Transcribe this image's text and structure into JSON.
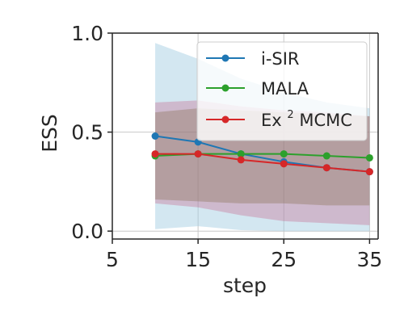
{
  "chart_data": {
    "type": "line",
    "title": "",
    "xlabel": "step",
    "ylabel": "ESS",
    "xlim": [
      5,
      36
    ],
    "ylim": [
      -0.04,
      1.0
    ],
    "xticks": [
      5,
      15,
      25,
      35
    ],
    "xtick_labels": [
      "5",
      "15",
      "25",
      "35"
    ],
    "yticks": [
      0.0,
      0.5,
      1.0
    ],
    "ytick_labels": [
      "0.0",
      "0.5",
      "1.0"
    ],
    "grid": true,
    "legend_position": "top-right",
    "x": [
      10,
      15,
      20,
      25,
      30,
      35
    ],
    "series": [
      {
        "name": "i-SIR",
        "legend_base": "i-SIR",
        "legend_sup": "",
        "legend_tail": "",
        "color": "#1f77b4",
        "values": [
          0.48,
          0.45,
          0.39,
          0.35,
          0.32,
          0.3
        ],
        "band_upper": [
          0.95,
          0.87,
          0.77,
          0.7,
          0.65,
          0.62
        ],
        "band_lower": [
          0.01,
          0.025,
          0.005,
          0.0,
          0.0,
          0.0
        ]
      },
      {
        "name": "MALA",
        "legend_base": "MALA",
        "legend_sup": "",
        "legend_tail": "",
        "color": "#2ca02c",
        "values": [
          0.38,
          0.39,
          0.39,
          0.39,
          0.38,
          0.37
        ],
        "band_upper": [
          0.6,
          0.62,
          0.61,
          0.6,
          0.59,
          0.58
        ],
        "band_lower": [
          0.16,
          0.15,
          0.14,
          0.14,
          0.13,
          0.13
        ]
      },
      {
        "name": "Ex2MCMC",
        "legend_base": "Ex",
        "legend_sup": "2",
        "legend_tail": "MCMC",
        "color": "#d62728",
        "values": [
          0.39,
          0.39,
          0.36,
          0.34,
          0.32,
          0.3
        ],
        "band_upper": [
          0.65,
          0.66,
          0.63,
          0.61,
          0.6,
          0.58
        ],
        "band_lower": [
          0.14,
          0.12,
          0.08,
          0.05,
          0.04,
          0.03
        ]
      }
    ],
    "colors": {
      "band_blue": "#9ecae1",
      "band_red": "#c44e7a",
      "band_green": "#6b7a3a",
      "axis": "#262626",
      "grid": "#c8c8c8"
    }
  }
}
